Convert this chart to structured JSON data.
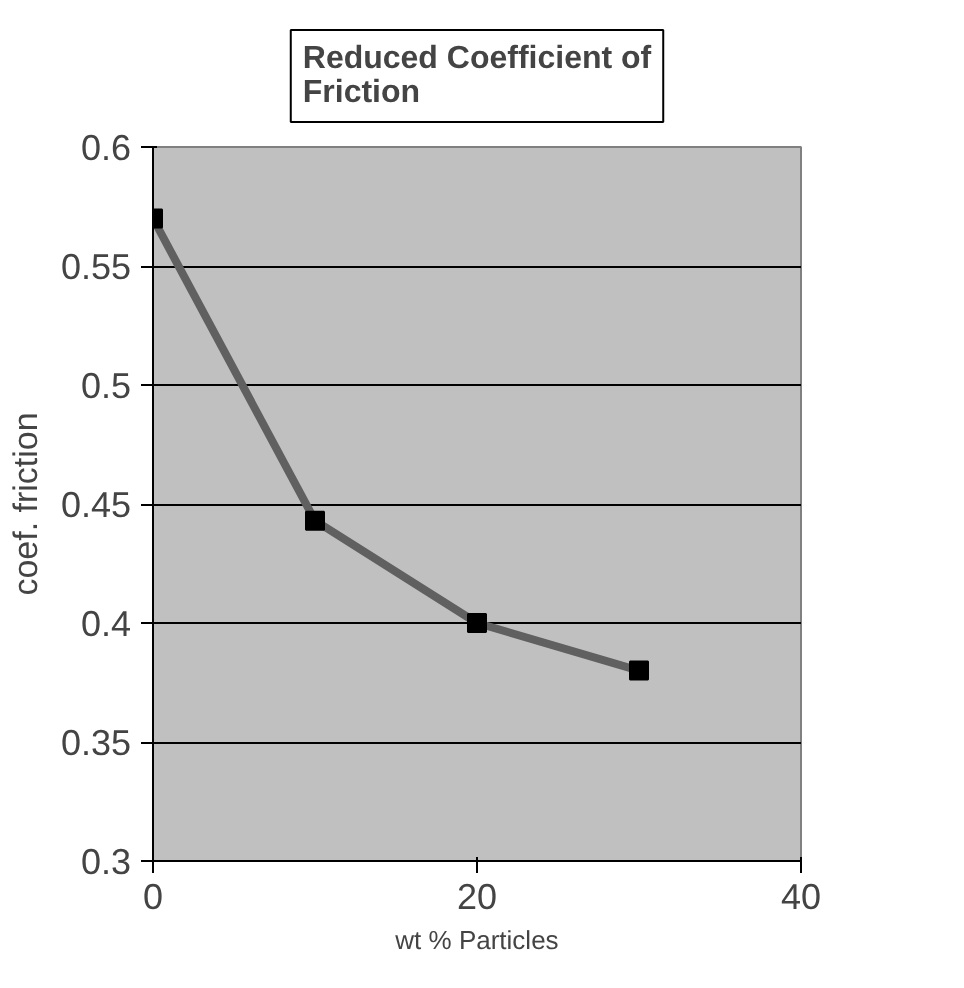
{
  "chart_data": {
    "type": "line",
    "title": "Reduced Coefficient of Friction",
    "xlabel": "wt % Particles",
    "ylabel": "coef. friction",
    "x": [
      0,
      10,
      20,
      30
    ],
    "series": [
      {
        "color": "#606060",
        "values": [
          0.57,
          0.443,
          0.4,
          0.38
        ]
      }
    ],
    "xlim": [
      0,
      40
    ],
    "xticks": [
      0,
      20,
      40
    ],
    "ylim": [
      0.3,
      0.6
    ],
    "yticks": [
      0.3,
      0.35,
      0.4,
      0.45,
      0.5,
      0.55,
      0.6
    ],
    "grid": "y",
    "marker": "square"
  }
}
